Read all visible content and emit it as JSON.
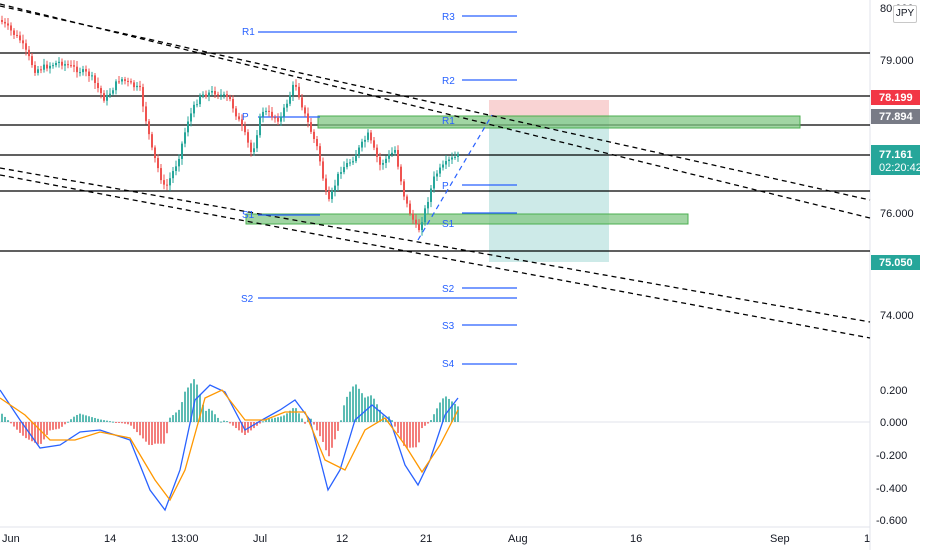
{
  "currency_badge": "JPY",
  "colors": {
    "up": "#26a69a",
    "down": "#ef5350",
    "pivot": "#2962ff",
    "macd": "#2962ff",
    "signal": "#ff9800",
    "zone": "#81c784",
    "target_zone": "#b2dfdb",
    "stop_zone": "#f8c8c8",
    "gray_tag": "#787b86",
    "red_tag": "#f23645"
  },
  "chart_data": [
    {
      "type": "candlestick",
      "title": "",
      "y_ticks": [
        "80.000",
        "79.000",
        "78.000",
        "76.000",
        "74.000"
      ],
      "ylim": [
        73.4,
        80.1
      ],
      "x_ticks": [
        "Jun",
        "14",
        "13:00",
        "Jul",
        "12",
        "21",
        "Aug",
        "16",
        "Sep",
        "1"
      ],
      "grid": false,
      "price_tags": [
        {
          "label": "78.199",
          "value": 78.199,
          "style": "red"
        },
        {
          "label": "77.894",
          "value": 77.894,
          "style": "gray"
        },
        {
          "label": "77.161",
          "value": 77.161,
          "style": "green",
          "countdown": "02:20:42"
        },
        {
          "label": "75.050",
          "value": 75.05,
          "style": "green"
        }
      ],
      "horizontal_levels": [
        79.05,
        78.199,
        77.894,
        77.161,
        76.43,
        75.05
      ],
      "pivot_levels": [
        {
          "label": "R3",
          "value": 79.85
        },
        {
          "label": "R1",
          "value": 79.55
        },
        {
          "label": "R2",
          "value": 78.55
        },
        {
          "label": "P",
          "value": 77.95
        },
        {
          "label": "R1",
          "value": 77.95
        },
        {
          "label": "P",
          "value": 76.55
        },
        {
          "label": "S1",
          "value": 75.96
        },
        {
          "label": "S1",
          "value": 75.78
        },
        {
          "label": "S2",
          "value": 74.98
        },
        {
          "label": "S2",
          "value": 74.78
        },
        {
          "label": "S3",
          "value": 74.15
        },
        {
          "label": "S4",
          "value": 73.45
        }
      ],
      "zones": [
        {
          "kind": "supply",
          "from": 77.82,
          "to": 78.04
        },
        {
          "kind": "demand",
          "from": 75.76,
          "to": 75.93
        }
      ],
      "position": {
        "direction": "long",
        "entry": 77.894,
        "stop": 78.199,
        "target": 75.05
      }
    },
    {
      "type": "macd",
      "title": "",
      "y_ticks": [
        "0.200",
        "0.000",
        "-0.200",
        "-0.400",
        "-0.600"
      ],
      "ylim": [
        -0.62,
        0.25
      ],
      "series": [
        {
          "name": "",
          "kind": "histogram"
        },
        {
          "name": "",
          "kind": "macd_line"
        },
        {
          "name": "",
          "kind": "signal_line"
        }
      ]
    }
  ]
}
